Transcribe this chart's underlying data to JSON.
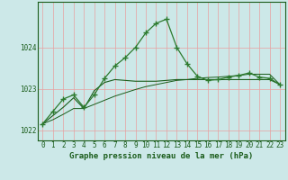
{
  "title": "Graphe pression niveau de la mer (hPa)",
  "bg_color": "#cce8e8",
  "grid_color": "#e8a0a0",
  "line_color_dark": "#1a5c1a",
  "line_color_med": "#2d7a2d",
  "x_hours": [
    0,
    1,
    2,
    3,
    4,
    5,
    6,
    7,
    8,
    9,
    10,
    11,
    12,
    13,
    14,
    15,
    16,
    17,
    18,
    19,
    20,
    21,
    22,
    23
  ],
  "y_main": [
    1022.15,
    1022.45,
    1022.75,
    1022.85,
    1022.55,
    1022.85,
    1023.25,
    1023.55,
    1023.75,
    1024.0,
    1024.35,
    1024.58,
    1024.68,
    1024.0,
    1023.6,
    1023.3,
    1023.2,
    1023.22,
    1023.28,
    1023.32,
    1023.38,
    1023.28,
    1023.25,
    1023.1
  ],
  "y_line2": [
    1022.15,
    1022.35,
    1022.55,
    1022.78,
    1022.52,
    1022.95,
    1023.15,
    1023.22,
    1023.2,
    1023.18,
    1023.18,
    1023.18,
    1023.2,
    1023.22,
    1023.22,
    1023.22,
    1023.22,
    1023.22,
    1023.22,
    1023.22,
    1023.22,
    1023.22,
    1023.22,
    1023.1
  ],
  "y_line3": [
    1022.15,
    1022.25,
    1022.38,
    1022.52,
    1022.52,
    1022.62,
    1022.72,
    1022.82,
    1022.9,
    1022.98,
    1023.05,
    1023.1,
    1023.15,
    1023.2,
    1023.22,
    1023.25,
    1023.27,
    1023.28,
    1023.3,
    1023.32,
    1023.35,
    1023.35,
    1023.35,
    1023.1
  ],
  "ylim": [
    1021.75,
    1025.1
  ],
  "yticks": [
    1022,
    1023,
    1024
  ],
  "title_fontsize": 6.5,
  "tick_fontsize": 5.5
}
